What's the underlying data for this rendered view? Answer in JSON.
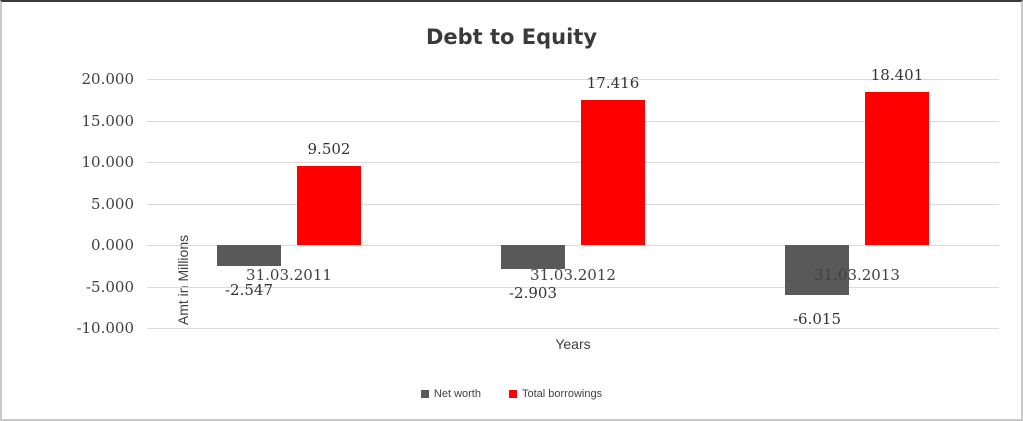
{
  "chart_data": {
    "type": "bar",
    "title": "Debt to Equity",
    "xlabel": "Years",
    "ylabel": "Amt in Millions",
    "categories": [
      "31.03.2011",
      "31.03.2012",
      "31.03.2013"
    ],
    "series": [
      {
        "name": "Net worth",
        "color": "#595959",
        "values": [
          -2.547,
          -2.903,
          -6.015
        ],
        "labels": [
          "-2.547",
          "-2.903",
          "-6.015"
        ]
      },
      {
        "name": "Total borrowings",
        "color": "#ff0000",
        "values": [
          9.502,
          17.416,
          18.401
        ],
        "labels": [
          "9.502",
          "17.416",
          "18.401"
        ]
      }
    ],
    "ylim": [
      -10,
      20
    ],
    "yticks": [
      20,
      15,
      10,
      5,
      0,
      -5,
      -10
    ],
    "ytick_labels": [
      "20.000",
      "15.000",
      "10.000",
      "5.000",
      "0.000",
      "-5.000",
      "-10.000"
    ],
    "grid": true,
    "legend_position": "bottom",
    "gridline_color": "#d9d9d9",
    "text_color": "#404040",
    "title_color": "#3a3a3a"
  }
}
